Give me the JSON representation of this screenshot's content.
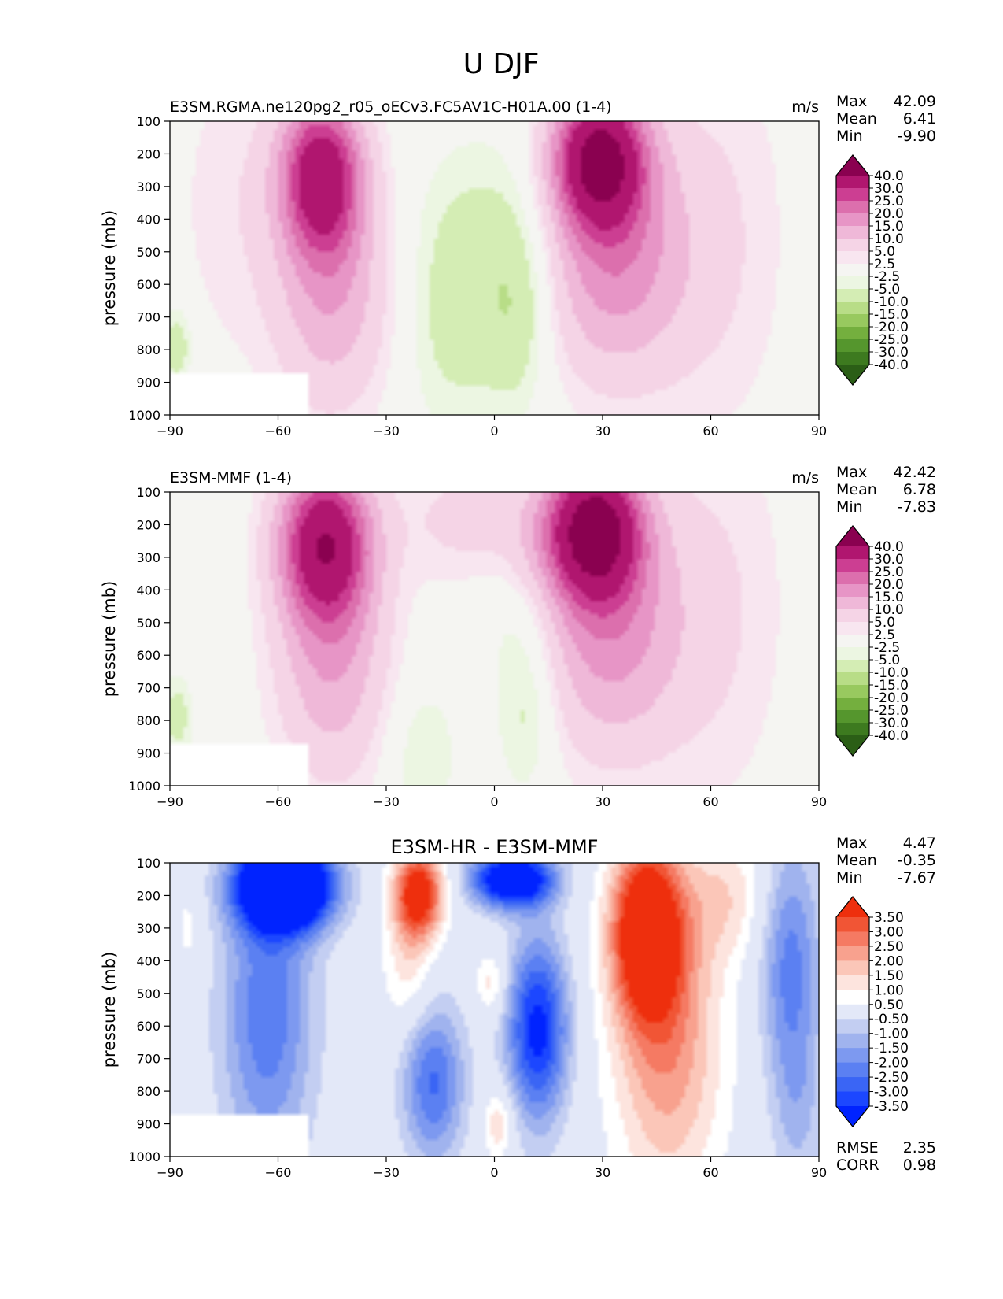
{
  "figure_title": "U DJF",
  "colors": {
    "background": "#f5f5f2",
    "missing": "#ffffff",
    "field_fill": [
      "#2b5e16",
      "#3d7a1f",
      "#55962d",
      "#74af3e",
      "#98c95f",
      "#b8dd87",
      "#d4edb4",
      "#ecf6e2",
      "#f5f5f2",
      "#f8e6f0",
      "#f5d4e6",
      "#efb8d8",
      "#e795c6",
      "#dc6fad",
      "#cc3e92",
      "#b0166f",
      "#8a0150"
    ],
    "diff_fill": [
      "#0023ff",
      "#1c47ff",
      "#3a65f5",
      "#5b80f2",
      "#7d99f0",
      "#a0b3ee",
      "#c3cef2",
      "#e3e8f8",
      "#ffffff",
      "#fde4de",
      "#fbc6b8",
      "#f8a18e",
      "#f57a63",
      "#f15535",
      "#ee2f0d"
    ]
  },
  "chart_data": [
    {
      "type": "contourf",
      "panel": "test",
      "title": "E3SM.RGMA.ne120pg2_r05_oECv3.FC5AV1C-H01A.00 (1-4)",
      "units": "m/s",
      "stats": {
        "Max": "42.09",
        "Mean": "6.41",
        "Min": "-9.90"
      },
      "stat_labels": [
        "Max",
        "Mean",
        "Min"
      ],
      "xlabel": "",
      "ylabel": "pressure (mb)",
      "xlim": [
        -90,
        90
      ],
      "ylim": [
        1000,
        100
      ],
      "xticks": [
        -90,
        -60,
        -30,
        0,
        30,
        60,
        90
      ],
      "xtick_labels": [
        "−90",
        "−60",
        "−30",
        "0",
        "30",
        "60",
        "90"
      ],
      "yticks": [
        100,
        200,
        300,
        400,
        500,
        600,
        700,
        800,
        900,
        1000
      ],
      "ytick_labels": [
        "100",
        "200",
        "300",
        "400",
        "500",
        "600",
        "700",
        "800",
        "900",
        "1000"
      ],
      "levels": [
        -40,
        -30,
        -25,
        -20,
        -15,
        -10,
        -5,
        -2.5,
        2.5,
        5,
        10,
        15,
        20,
        25,
        30,
        40
      ],
      "colorbar_labels": [
        "40.0",
        "30.0",
        "25.0",
        "20.0",
        "15.0",
        "10.0",
        "5.0",
        "2.5",
        "-2.5",
        "-5.0",
        "-10.0",
        "-15.0",
        "-20.0",
        "-25.0",
        "-30.0",
        "-40.0"
      ],
      "features": [
        {
          "name": "southern-jet",
          "lat": -48,
          "p": 260,
          "max": 36
        },
        {
          "name": "northern-jet",
          "lat": 29,
          "p": 200,
          "max": 42.09
        },
        {
          "name": "tropical-easterlies",
          "lat": 5,
          "p": 650,
          "min": -9.9
        }
      ],
      "missing_region": {
        "lat": [
          -90,
          -52
        ],
        "p": [
          870,
          1000
        ]
      }
    },
    {
      "type": "contourf",
      "panel": "reference",
      "title": "E3SM-MMF (1-4)",
      "units": "m/s",
      "stats": {
        "Max": "42.42",
        "Mean": "6.78",
        "Min": "-7.83"
      },
      "stat_labels": [
        "Max",
        "Mean",
        "Min"
      ],
      "xlabel": "",
      "ylabel": "pressure (mb)",
      "xlim": [
        -90,
        90
      ],
      "ylim": [
        1000,
        100
      ],
      "xticks": [
        -90,
        -60,
        -30,
        0,
        30,
        60,
        90
      ],
      "xtick_labels": [
        "−90",
        "−60",
        "−30",
        "0",
        "30",
        "60",
        "90"
      ],
      "yticks": [
        100,
        200,
        300,
        400,
        500,
        600,
        700,
        800,
        900,
        1000
      ],
      "ytick_labels": [
        "100",
        "200",
        "300",
        "400",
        "500",
        "600",
        "700",
        "800",
        "900",
        "1000"
      ],
      "levels": [
        -40,
        -30,
        -25,
        -20,
        -15,
        -10,
        -5,
        -2.5,
        2.5,
        5,
        10,
        15,
        20,
        25,
        30,
        40
      ],
      "colorbar_labels": [
        "40.0",
        "30.0",
        "25.0",
        "20.0",
        "15.0",
        "10.0",
        "5.0",
        "2.5",
        "-2.5",
        "-5.0",
        "-10.0",
        "-15.0",
        "-20.0",
        "-25.0",
        "-30.0",
        "-40.0"
      ],
      "features": [
        {
          "name": "southern-jet",
          "lat": -47,
          "p": 250,
          "max": 37
        },
        {
          "name": "northern-jet",
          "lat": 28,
          "p": 200,
          "max": 42.42
        },
        {
          "name": "tropical-easterlies",
          "lat": 8,
          "p": 720,
          "min": -7.83
        }
      ],
      "missing_region": {
        "lat": [
          -90,
          -52
        ],
        "p": [
          870,
          1000
        ]
      }
    },
    {
      "type": "contourf",
      "panel": "difference",
      "title": "E3SM-HR - E3SM-MMF",
      "units": "",
      "stats": {
        "Max": "4.47",
        "Mean": "-0.35",
        "Min": "-7.67"
      },
      "stat_labels": [
        "Max",
        "Mean",
        "Min"
      ],
      "extra_stats": {
        "RMSE": "2.35",
        "CORR": "0.98"
      },
      "extra_stat_labels": [
        "RMSE",
        "CORR"
      ],
      "xlabel": "",
      "ylabel": "pressure (mb)",
      "xlim": [
        -90,
        90
      ],
      "ylim": [
        1000,
        100
      ],
      "xticks": [
        -90,
        -60,
        -30,
        0,
        30,
        60,
        90
      ],
      "xtick_labels": [
        "−90",
        "−60",
        "−30",
        "0",
        "30",
        "60",
        "90"
      ],
      "yticks": [
        100,
        200,
        300,
        400,
        500,
        600,
        700,
        800,
        900,
        1000
      ],
      "ytick_labels": [
        "100",
        "200",
        "300",
        "400",
        "500",
        "600",
        "700",
        "800",
        "900",
        "1000"
      ],
      "levels": [
        -3.5,
        -3,
        -2.5,
        -2,
        -1.5,
        -1,
        -0.5,
        0.5,
        1,
        1.5,
        2,
        2.5,
        3,
        3.5
      ],
      "colorbar_labels": [
        "3.50",
        "3.00",
        "2.50",
        "2.00",
        "1.50",
        "1.00",
        "0.50",
        "-0.50",
        "-1.00",
        "-1.50",
        "-2.00",
        "-2.50",
        "-3.00",
        "-3.50"
      ],
      "features": [
        {
          "name": "sh-upper-negative",
          "lat": -58,
          "p": 170,
          "min": -7.67
        },
        {
          "name": "nh-midlat-positive",
          "lat": 42,
          "p": 300,
          "max": 4.47
        },
        {
          "name": "subtropical-positive",
          "lat": -21,
          "p": 190,
          "max": 4.0
        },
        {
          "name": "equatorial-negative",
          "lat": 5,
          "p": 150,
          "min": -5.0
        }
      ],
      "missing_region": {
        "lat": [
          -90,
          -52
        ],
        "p": [
          870,
          1000
        ]
      }
    }
  ]
}
